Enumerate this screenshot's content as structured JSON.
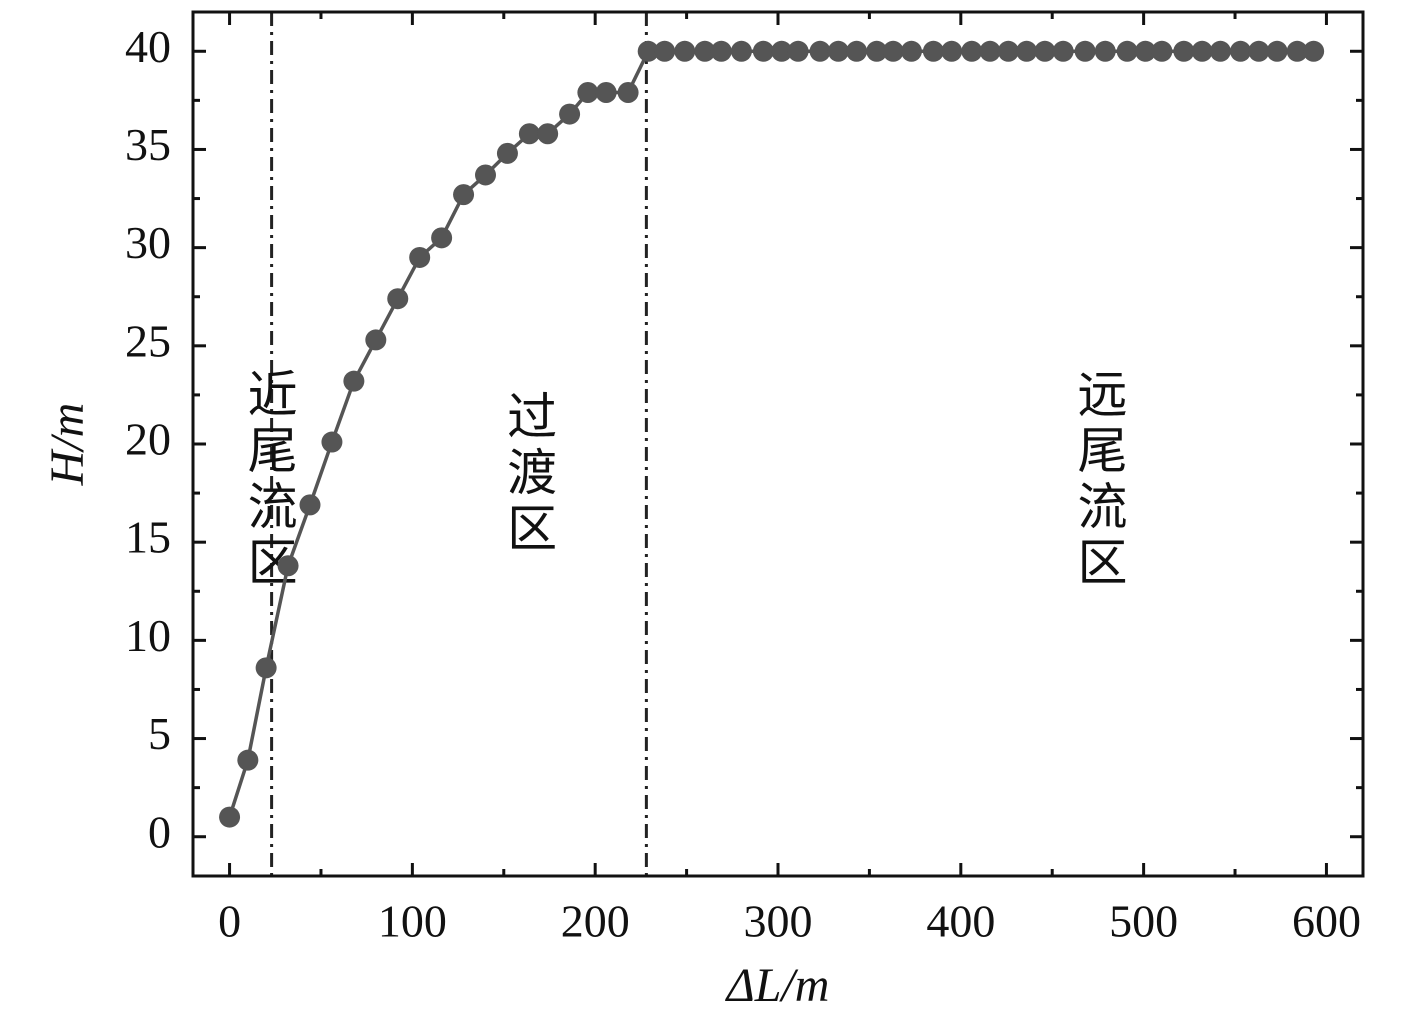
{
  "chart_data": {
    "type": "line",
    "x_label": "ΔL/m",
    "y_label": "H/m",
    "x": [
      0,
      10,
      20,
      32,
      44,
      56,
      68,
      80,
      92,
      104,
      116,
      128,
      140,
      152,
      164,
      174,
      186,
      196,
      206,
      218,
      229,
      238,
      249,
      260,
      269,
      280,
      292,
      302,
      311,
      323,
      333,
      343,
      354,
      363,
      373,
      385,
      395,
      406,
      416,
      426,
      436,
      446,
      456,
      468,
      479,
      491,
      501,
      510,
      522,
      532,
      542,
      553,
      563,
      573,
      584,
      593
    ],
    "series": [
      {
        "color": "#555555",
        "values": [
          1.0,
          3.9,
          8.6,
          13.8,
          16.9,
          20.1,
          23.2,
          25.3,
          27.4,
          29.5,
          30.5,
          32.7,
          33.7,
          34.8,
          35.8,
          35.8,
          36.8,
          37.9,
          37.9,
          37.9,
          40,
          40,
          40,
          40,
          40,
          40,
          40,
          40,
          40,
          40,
          40,
          40,
          40,
          40,
          40,
          40,
          40,
          40,
          40,
          40,
          40,
          40,
          40,
          40,
          40,
          40,
          40,
          40,
          40,
          40,
          40,
          40,
          40,
          40,
          40,
          40
        ]
      }
    ],
    "xlim": [
      -20,
      620
    ],
    "ylim": [
      -2,
      42
    ],
    "xticks": [
      0,
      100,
      200,
      300,
      400,
      500,
      600
    ],
    "yticks": [
      0,
      5,
      10,
      15,
      20,
      25,
      30,
      35,
      40
    ],
    "vlines": [
      23,
      228
    ],
    "annotations": [
      {
        "text": "近尾流区",
        "x": 3
      },
      {
        "text": "过渡区",
        "x": 145
      },
      {
        "text": "远尾流区",
        "x": 457
      }
    ]
  }
}
